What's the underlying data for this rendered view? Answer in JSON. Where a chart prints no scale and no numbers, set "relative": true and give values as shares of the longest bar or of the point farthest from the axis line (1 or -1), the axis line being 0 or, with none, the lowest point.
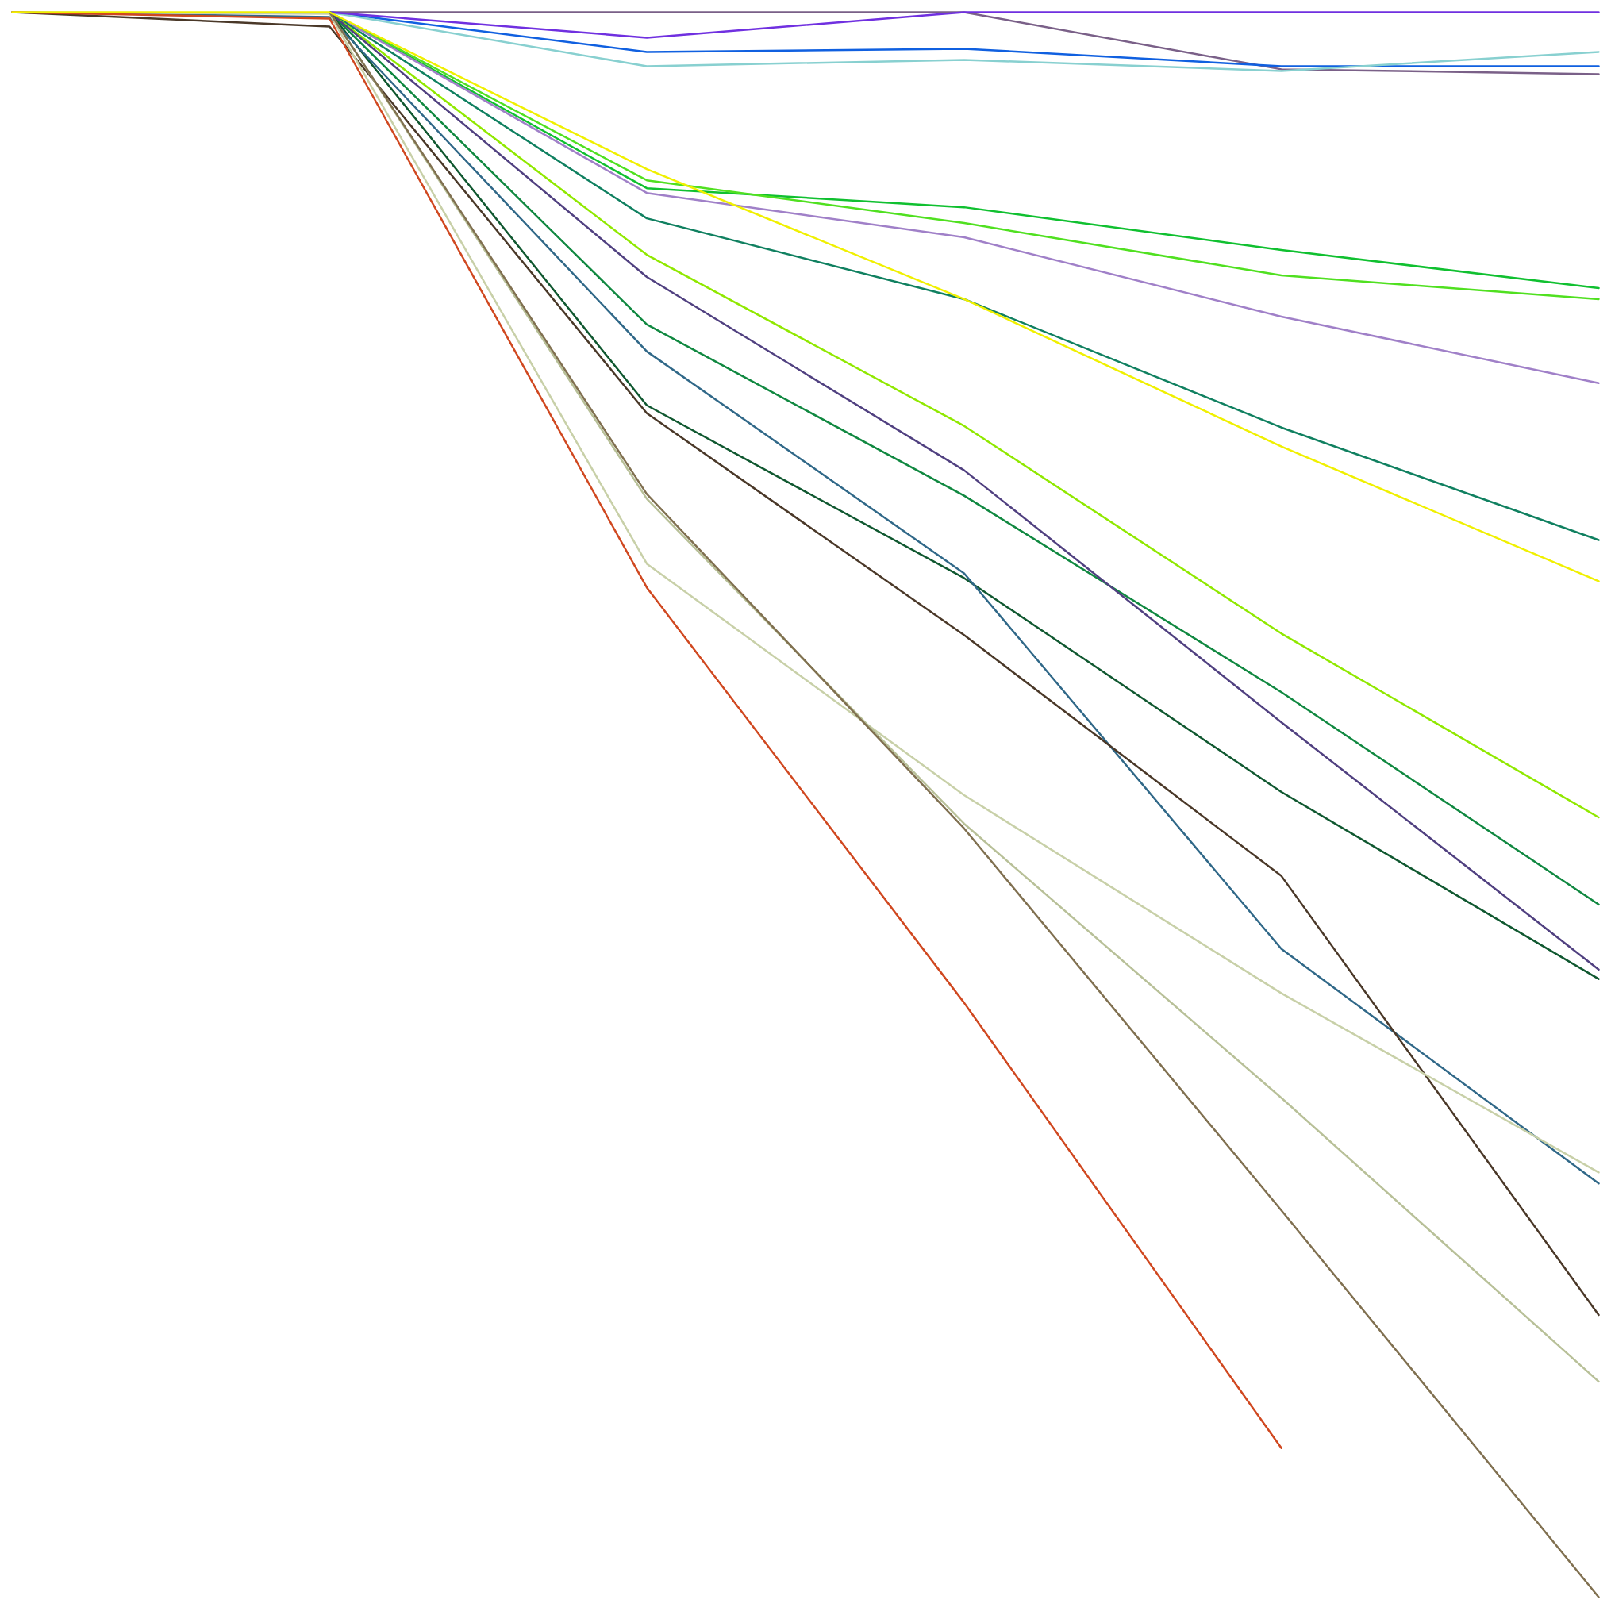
{
  "chart_data": {
    "type": "line",
    "relative": true,
    "categories": [
      null,
      null,
      null,
      null,
      null,
      null
    ],
    "series": [
      {
        "color": "#7a6088",
        "values": [
          null,
          1,
          1,
          1,
          0.964,
          0.961
        ]
      },
      {
        "color": "#1060e0",
        "values": [
          null,
          1,
          0.975,
          0.977,
          0.966,
          0.966
        ]
      },
      {
        "color": "#88d0d0",
        "values": [
          null,
          1,
          0.966,
          0.97,
          0.963,
          0.975
        ]
      },
      {
        "color": "#7030e0",
        "values": [
          null,
          1,
          0.984,
          1,
          1,
          1
        ]
      },
      {
        "color": "#10c030",
        "values": [
          null,
          1,
          0.889,
          0.877,
          0.85,
          0.826
        ]
      },
      {
        "color": "#50e020",
        "values": [
          null,
          1,
          0.894,
          0.867,
          0.834,
          0.819
        ]
      },
      {
        "color": "#a080c8",
        "values": [
          null,
          1,
          0.886,
          0.858,
          0.808,
          0.766
        ]
      },
      {
        "color": "#108060",
        "values": [
          null,
          1,
          0.87,
          0.819,
          0.738,
          0.667
        ]
      },
      {
        "color": "#90e800",
        "values": [
          null,
          1,
          0.847,
          0.739,
          0.608,
          0.492
        ]
      },
      {
        "color": "#108840",
        "values": [
          null,
          1,
          0.803,
          0.695,
          0.571,
          0.437
        ]
      },
      {
        "color": "#504080",
        "values": [
          null,
          1,
          0.833,
          0.711,
          0.552,
          0.396
        ]
      },
      {
        "color": "#105830",
        "values": [
          null,
          1,
          0.752,
          0.643,
          0.508,
          0.39
        ]
      },
      {
        "color": "#306888",
        "values": [
          1,
          0.997,
          0.786,
          0.646,
          0.409,
          0.261
        ]
      },
      {
        "color": "#4a3828",
        "values": [
          1,
          0.991,
          0.747,
          0.607,
          0.455,
          0.178
        ]
      },
      {
        "color": "#c8d0a8",
        "values": [
          1,
          0.999,
          0.652,
          0.506,
          0.381,
          0.268
        ]
      },
      {
        "color": "#b8c098",
        "values": [
          null,
          1,
          0.693,
          0.488,
          0.315,
          0.136
        ]
      },
      {
        "color": "#807050",
        "values": [
          null,
          1,
          0.696,
          0.485,
          0.244,
          0
        ]
      },
      {
        "color": "#d04820",
        "values": [
          1,
          0.996,
          0.637,
          0.375,
          0.094,
          null
        ]
      },
      {
        "color": "#f0f000",
        "values": [
          1,
          1,
          0.901,
          0.819,
          0.726,
          0.641
        ]
      }
    ]
  }
}
